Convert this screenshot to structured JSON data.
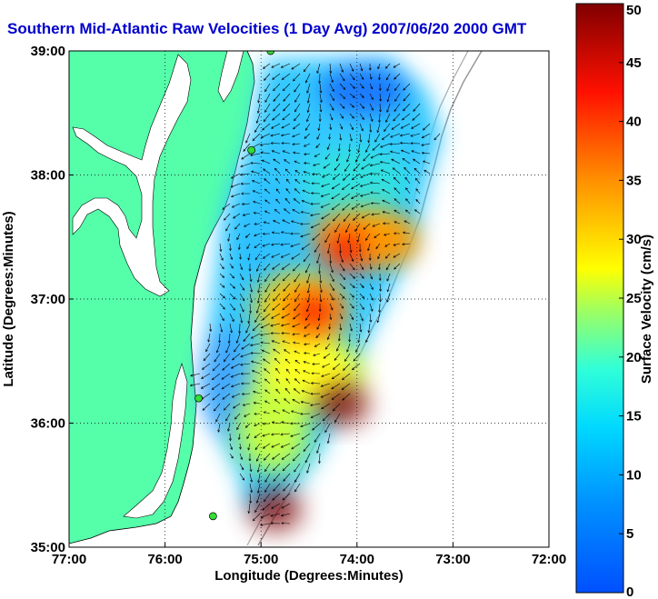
{
  "chart_data": {
    "type": "heatmap",
    "title": "Southern Mid-Atlantic Raw Velocities (1 Day Avg) 2007/06/20 2000 GMT",
    "xlabel": "Longitude (Degrees:Minutes)",
    "ylabel": "Latitude (Degrees:Minutes)",
    "xlim": [
      -77,
      -72
    ],
    "ylim": [
      35,
      39
    ],
    "x_ticks": [
      "77:00",
      "76:00",
      "75:00",
      "74:00",
      "73:00",
      "72:00"
    ],
    "y_ticks": [
      "39:00",
      "38:00",
      "37:00",
      "36:00",
      "35:00"
    ],
    "grid": true,
    "colorbar": {
      "label": "Surface Velocity (cm/s)",
      "range": [
        0,
        50
      ],
      "ticks": [
        "0",
        "5",
        "10",
        "15",
        "20",
        "25",
        "30",
        "35",
        "40",
        "45",
        "50"
      ]
    },
    "stations": [
      {
        "lon": -74.9,
        "lat": 39.0
      },
      {
        "lon": -75.1,
        "lat": 38.2
      },
      {
        "lon": -75.65,
        "lat": 36.2
      },
      {
        "lon": -75.5,
        "lat": 35.25
      }
    ],
    "hotspots": [
      {
        "lon": -74.1,
        "lat": 37.4,
        "speed": 42
      },
      {
        "lon": -74.45,
        "lat": 36.9,
        "speed": 45
      },
      {
        "lon": -74.15,
        "lat": 36.15,
        "speed": 47
      },
      {
        "lon": -74.85,
        "lat": 35.3,
        "speed": 48
      },
      {
        "lon": -73.65,
        "lat": 37.45,
        "speed": 38
      }
    ]
  },
  "colors": {
    "land": "#55ffaa",
    "title": "#0000cc",
    "colormap": [
      "#0000aa",
      "#0060ff",
      "#00c8ff",
      "#30ffd0",
      "#a0ff60",
      "#ffff00",
      "#ff9000",
      "#ff1000",
      "#800000"
    ]
  }
}
